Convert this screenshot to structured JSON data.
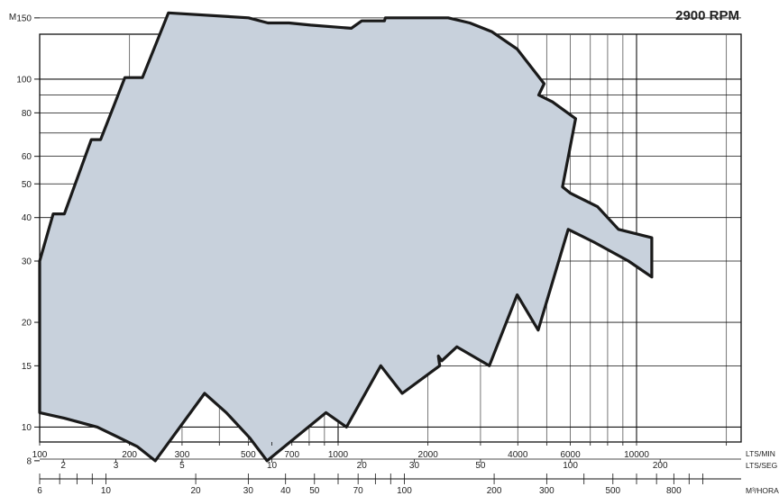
{
  "chart_data": {
    "type": "area",
    "title": "2900 RPM",
    "ylabel": "M",
    "yscale": "log",
    "xscale": "log",
    "ylim": [
      8,
      160
    ],
    "xlim_lts_min": [
      100,
      12500
    ],
    "y_ticks": [
      8,
      10,
      15,
      20,
      30,
      40,
      50,
      60,
      80,
      100,
      150
    ],
    "x_axes": [
      {
        "unit": "LTS/MIN",
        "ticks": [
          "100",
          "200",
          "300",
          "500",
          "700",
          "1000",
          "2000",
          "4000",
          "6000",
          "10000"
        ],
        "tick_values": [
          100,
          200,
          300,
          500,
          700,
          1000,
          2000,
          4000,
          6000,
          10000
        ]
      },
      {
        "unit": "LTS/SEG",
        "ticks": [
          "2",
          "3",
          "5",
          "10",
          "20",
          "30",
          "50",
          "100",
          "200"
        ],
        "tick_values": [
          2,
          3,
          5,
          10,
          20,
          30,
          50,
          100,
          200
        ]
      },
      {
        "unit": "M³/HORA",
        "ticks": [
          "6",
          "10",
          "20",
          "30",
          "40",
          "50",
          "70",
          "100",
          "200",
          "300",
          "500",
          "800"
        ],
        "tick_values": [
          6,
          10,
          20,
          30,
          40,
          50,
          70,
          100,
          200,
          300,
          500,
          800
        ]
      }
    ],
    "series": [
      {
        "fill": "#c8d1dc",
        "stroke": "#1a1a1a",
        "points": [
          [
            100,
            30
          ],
          [
            111,
            41
          ],
          [
            121,
            41
          ],
          [
            149,
            67
          ],
          [
            160,
            67
          ],
          [
            193,
            101
          ],
          [
            221,
            101
          ],
          [
            270,
            155
          ],
          [
            501,
            150
          ],
          [
            582,
            145
          ],
          [
            685,
            145
          ],
          [
            808,
            143
          ],
          [
            1107,
            140
          ],
          [
            1200,
            147
          ],
          [
            1430,
            147
          ],
          [
            1440,
            150
          ],
          [
            2337,
            150
          ],
          [
            2764,
            145
          ],
          [
            3270,
            137
          ],
          [
            3980,
            122
          ],
          [
            4900,
            97
          ],
          [
            4700,
            90
          ],
          [
            5230,
            86
          ],
          [
            6250,
            77
          ],
          [
            5650,
            49
          ],
          [
            6000,
            47
          ],
          [
            7400,
            43
          ],
          [
            8700,
            37
          ],
          [
            11250,
            35
          ],
          [
            11250,
            27
          ],
          [
            9400,
            30
          ],
          [
            7200,
            34
          ],
          [
            5900,
            37
          ],
          [
            4680,
            19
          ],
          [
            3980,
            24
          ],
          [
            3210,
            15
          ],
          [
            2500,
            17
          ],
          [
            2225,
            15.5
          ],
          [
            2168,
            16
          ],
          [
            2190,
            15
          ],
          [
            1640,
            12.5
          ],
          [
            1390,
            15
          ],
          [
            1067,
            10
          ],
          [
            911,
            11
          ],
          [
            578,
            8
          ],
          [
            506,
            9.3
          ],
          [
            422,
            11
          ],
          [
            357,
            12.5
          ],
          [
            244,
            8
          ],
          [
            212,
            8.8
          ],
          [
            156,
            10
          ],
          [
            121,
            10.6
          ],
          [
            100,
            11
          ],
          [
            100,
            30
          ]
        ]
      }
    ]
  }
}
